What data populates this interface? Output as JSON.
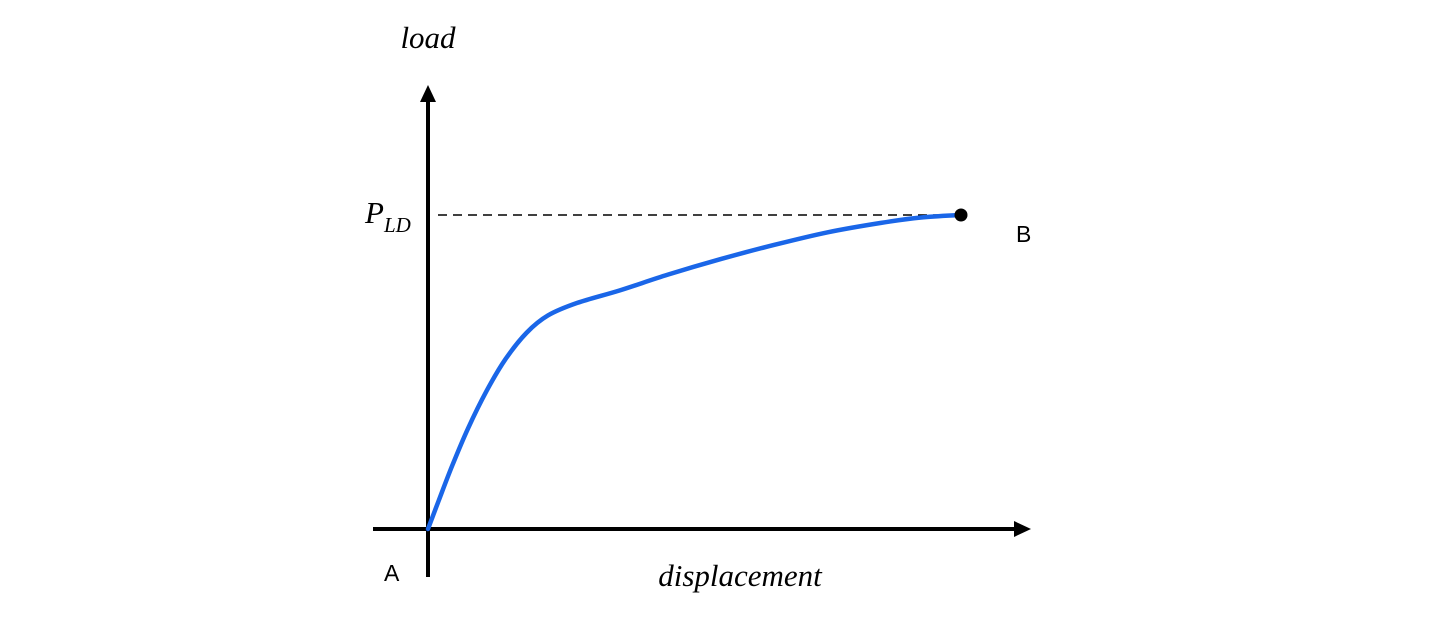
{
  "chart_data": {
    "type": "line",
    "xlabel": "displacement",
    "ylabel": "load",
    "xlim": [
      0,
      1
    ],
    "ylim": [
      0,
      1.3
    ],
    "grid": false,
    "legend": "none",
    "series": [
      {
        "color": "#1a66e8",
        "points": [
          [
            0.0,
            0.0
          ],
          [
            0.02,
            0.09
          ],
          [
            0.045,
            0.2
          ],
          [
            0.075,
            0.32
          ],
          [
            0.11,
            0.44
          ],
          [
            0.145,
            0.54
          ],
          [
            0.185,
            0.625
          ],
          [
            0.225,
            0.68
          ],
          [
            0.28,
            0.72
          ],
          [
            0.36,
            0.76
          ],
          [
            0.45,
            0.81
          ],
          [
            0.55,
            0.86
          ],
          [
            0.65,
            0.905
          ],
          [
            0.75,
            0.945
          ],
          [
            0.85,
            0.975
          ],
          [
            0.925,
            0.992
          ],
          [
            1.0,
            1.0
          ]
        ]
      }
    ],
    "reference_line": {
      "y": 1.0,
      "label_main": "P",
      "label_sub": "LD",
      "style": "dashed"
    },
    "annotations": [
      {
        "id": "start",
        "label": "A",
        "x": 0.0,
        "y": 0.0
      },
      {
        "id": "end",
        "label": "B",
        "x": 1.0,
        "y": 1.0,
        "marker": "filled-circle",
        "marker_color": "#000000"
      }
    ]
  }
}
